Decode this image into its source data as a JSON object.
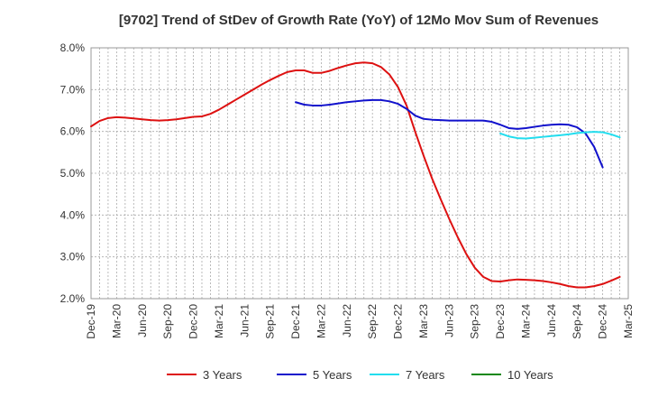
{
  "chart_data": {
    "type": "line",
    "title": "[9702]  Trend of StDev of Growth Rate (YoY) of 12Mo Mov Sum of Revenues",
    "xlabel": "",
    "ylabel": "",
    "ylim": [
      2.0,
      8.0
    ],
    "yticks": [
      "2.0%",
      "3.0%",
      "4.0%",
      "5.0%",
      "6.0%",
      "7.0%",
      "8.0%"
    ],
    "xtick_labels": [
      "Dec-19",
      "Mar-20",
      "Jun-20",
      "Sep-20",
      "Dec-20",
      "Mar-21",
      "Jun-21",
      "Sep-21",
      "Dec-21",
      "Mar-22",
      "Jun-22",
      "Sep-22",
      "Dec-22",
      "Mar-23",
      "Jun-23",
      "Sep-23",
      "Dec-23",
      "Mar-24",
      "Jun-24",
      "Sep-24",
      "Dec-24",
      "Mar-25"
    ],
    "x_months": 63,
    "grid": true,
    "legend_position": "bottom",
    "series": [
      {
        "name": "3 Years",
        "color": "#dd1111",
        "start_month": 0,
        "values": [
          6.12,
          6.25,
          6.32,
          6.34,
          6.33,
          6.31,
          6.29,
          6.27,
          6.26,
          6.27,
          6.29,
          6.32,
          6.35,
          6.36,
          6.42,
          6.52,
          6.64,
          6.76,
          6.88,
          7.0,
          7.12,
          7.23,
          7.33,
          7.42,
          7.46,
          7.46,
          7.4,
          7.4,
          7.45,
          7.52,
          7.58,
          7.63,
          7.65,
          7.63,
          7.54,
          7.36,
          7.06,
          6.62,
          6.0,
          5.42,
          4.87,
          4.38,
          3.91,
          3.47,
          3.07,
          2.74,
          2.52,
          2.42,
          2.41,
          2.44,
          2.46,
          2.45,
          2.44,
          2.42,
          2.39,
          2.35,
          2.3,
          2.27,
          2.27,
          2.3,
          2.35,
          2.43,
          2.52
        ]
      },
      {
        "name": "5 Years",
        "color": "#1111cc",
        "start_month": 24,
        "values": [
          6.7,
          6.64,
          6.62,
          6.62,
          6.64,
          6.67,
          6.7,
          6.72,
          6.74,
          6.75,
          6.75,
          6.72,
          6.66,
          6.54,
          6.38,
          6.3,
          6.28,
          6.27,
          6.26,
          6.26,
          6.26,
          6.26,
          6.26,
          6.23,
          6.16,
          6.08,
          6.06,
          6.08,
          6.11,
          6.14,
          6.16,
          6.17,
          6.16,
          6.1,
          5.95,
          5.63,
          5.14
        ]
      },
      {
        "name": "7 Years",
        "color": "#22ddee",
        "start_month": 48,
        "values": [
          5.95,
          5.88,
          5.84,
          5.83,
          5.85,
          5.87,
          5.89,
          5.91,
          5.93,
          5.96,
          5.98,
          5.99,
          5.98,
          5.93,
          5.86
        ]
      },
      {
        "name": "10 Years",
        "color": "#118811",
        "start_month": 0,
        "values": []
      }
    ]
  }
}
